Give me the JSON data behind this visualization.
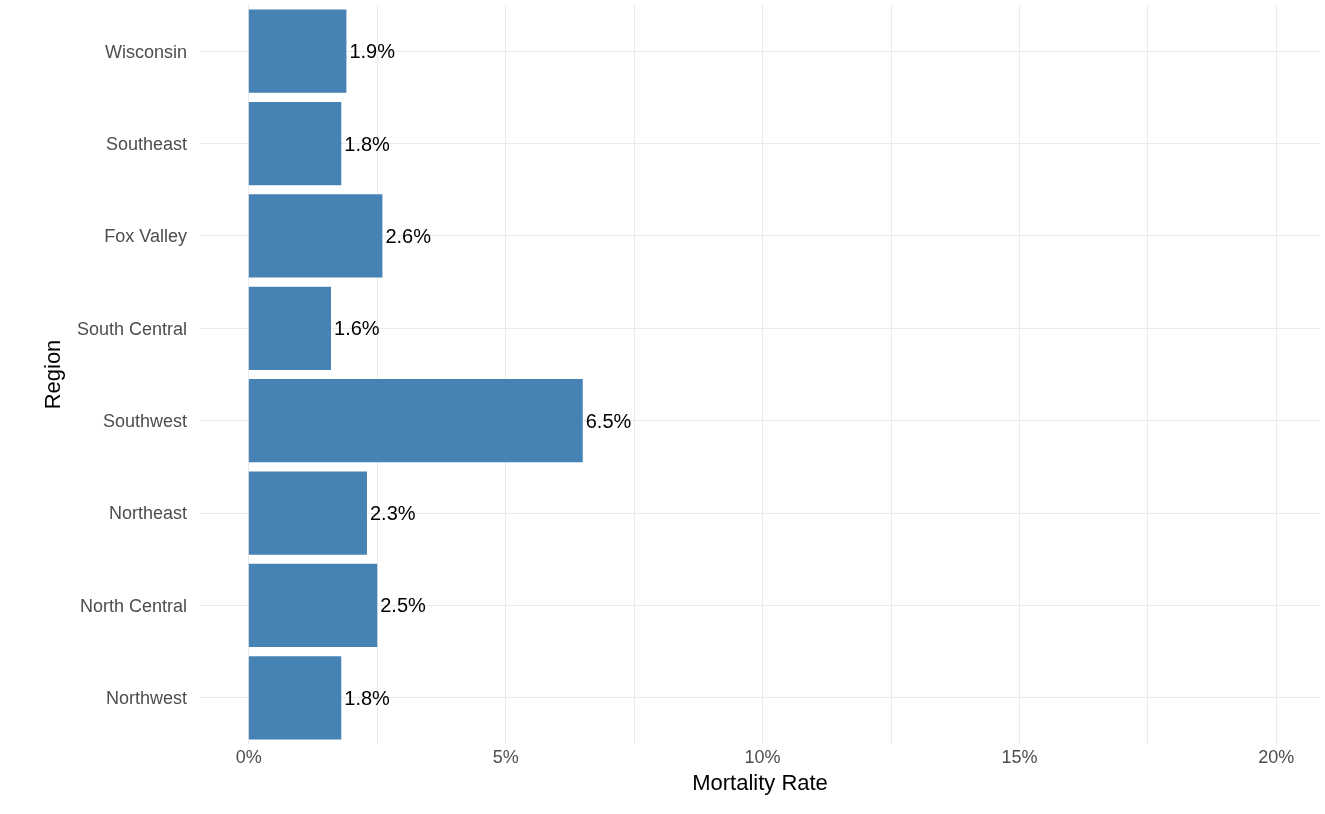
{
  "chart_data": {
    "type": "bar",
    "orientation": "horizontal",
    "xlabel": "Mortality Rate",
    "ylabel": "Region",
    "categories": [
      "Wisconsin",
      "Southeast",
      "Fox Valley",
      "South Central",
      "Southwest",
      "Northeast",
      "North Central",
      "Northwest"
    ],
    "values": [
      1.9,
      1.8,
      2.6,
      1.6,
      6.5,
      2.3,
      2.5,
      1.8
    ],
    "value_labels": [
      "1.9%",
      "1.8%",
      "2.6%",
      "1.6%",
      "6.5%",
      "2.3%",
      "2.5%",
      "1.8%"
    ],
    "color": "#4682b4",
    "xlim": [
      -0.95,
      20.85
    ],
    "xticks": [
      {
        "value": 0,
        "label": "0%"
      },
      {
        "value": 2.5,
        "label": null
      },
      {
        "value": 5,
        "label": "5%"
      },
      {
        "value": 7.5,
        "label": null
      },
      {
        "value": 10,
        "label": "10%"
      },
      {
        "value": 12.5,
        "label": null
      },
      {
        "value": 15,
        "label": "15%"
      },
      {
        "value": 17.5,
        "label": null
      },
      {
        "value": 20,
        "label": "20%"
      }
    ],
    "grid": true
  }
}
